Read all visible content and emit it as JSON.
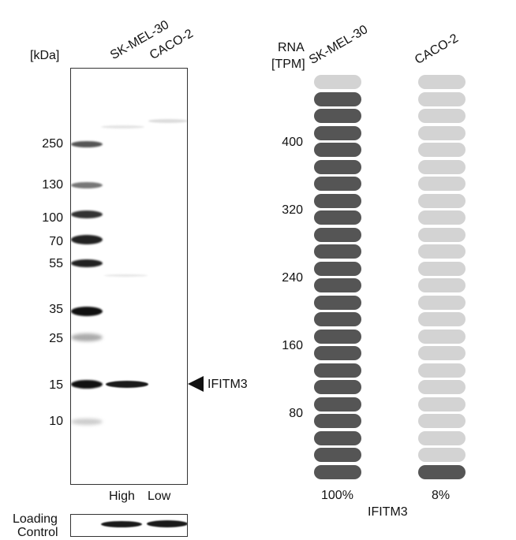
{
  "blot": {
    "unit_label": "[kDa]",
    "lanes": [
      "SK-MEL-30",
      "CACO-2"
    ],
    "markers": [
      "250",
      "130",
      "100",
      "70",
      "55",
      "35",
      "25",
      "15",
      "10"
    ],
    "target_label": "IFITM3",
    "expression_levels": [
      "High",
      "Low"
    ],
    "loading_control_label_line1": "Loading",
    "loading_control_label_line2": "Control"
  },
  "rna": {
    "axis_label_line1": "RNA",
    "axis_label_line2": "[TPM]",
    "ticks": [
      "400",
      "320",
      "240",
      "160",
      "80"
    ],
    "samples": [
      {
        "name": "SK-MEL-30",
        "percent": "100%",
        "filled_fraction": 0.96
      },
      {
        "name": "CACO-2",
        "percent": "8%",
        "filled_fraction": 0.04
      }
    ],
    "gene": "IFITM3",
    "colors": {
      "filled": "#555555",
      "empty": "#d3d3d3"
    }
  }
}
